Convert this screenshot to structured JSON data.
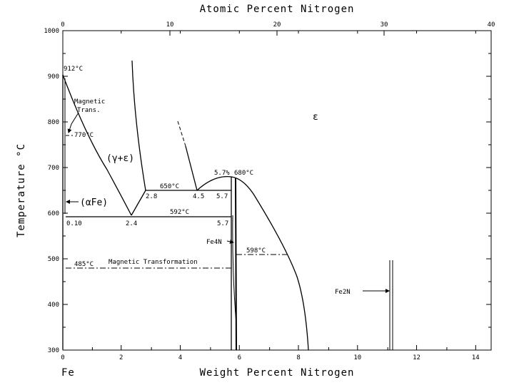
{
  "top_axis": {
    "title": "Atomic Percent Nitrogen",
    "ticks": [
      {
        "label": "0",
        "at": 0
      },
      {
        "label": "10",
        "at": 10
      },
      {
        "label": "20",
        "at": 20
      },
      {
        "label": "30",
        "at": 30
      },
      {
        "label": "40",
        "at": 40
      }
    ]
  },
  "bottom_axis": {
    "title": "Weight Percent Nitrogen",
    "ticks": [
      {
        "label": "0",
        "at": 0
      },
      {
        "label": "2",
        "at": 2
      },
      {
        "label": "4",
        "at": 4
      },
      {
        "label": "6",
        "at": 6
      },
      {
        "label": "8",
        "at": 8
      },
      {
        "label": "10",
        "at": 10
      },
      {
        "label": "12",
        "at": 12
      },
      {
        "label": "14",
        "at": 14
      }
    ],
    "origin_label": "Fe"
  },
  "left_axis": {
    "title": "Temperature °C",
    "ticks": [
      {
        "label": "1000",
        "at": 1000
      },
      {
        "label": "900",
        "at": 900
      },
      {
        "label": "800",
        "at": 800
      },
      {
        "label": "700",
        "at": 700
      },
      {
        "label": "600",
        "at": 600
      },
      {
        "label": "500",
        "at": 500
      },
      {
        "label": "400",
        "at": 400
      },
      {
        "label": "300",
        "at": 300
      }
    ]
  },
  "annotations": {
    "t912": "912°C",
    "magnetic_trans": "Magnetic",
    "magnetic_trans2": "Trans.",
    "t770": "770°C",
    "gamma_eps": "(γ+ε)",
    "alpha_fe": "(αFe)",
    "t650": "650°C",
    "c28": "2.8",
    "c45": "4.5",
    "c57a": "5.7",
    "c57b": "5.7",
    "c57c": "5.7%",
    "t680": "680°C",
    "t592": "592°C",
    "c010": "0.10",
    "c24": "2.4",
    "fe4n": "Fe4N",
    "t598": "598°C",
    "t485": "485°C",
    "magnetic_transformation": "Magnetic Transformation",
    "fe2n": "Fe2N",
    "epsilon": "ε"
  }
}
